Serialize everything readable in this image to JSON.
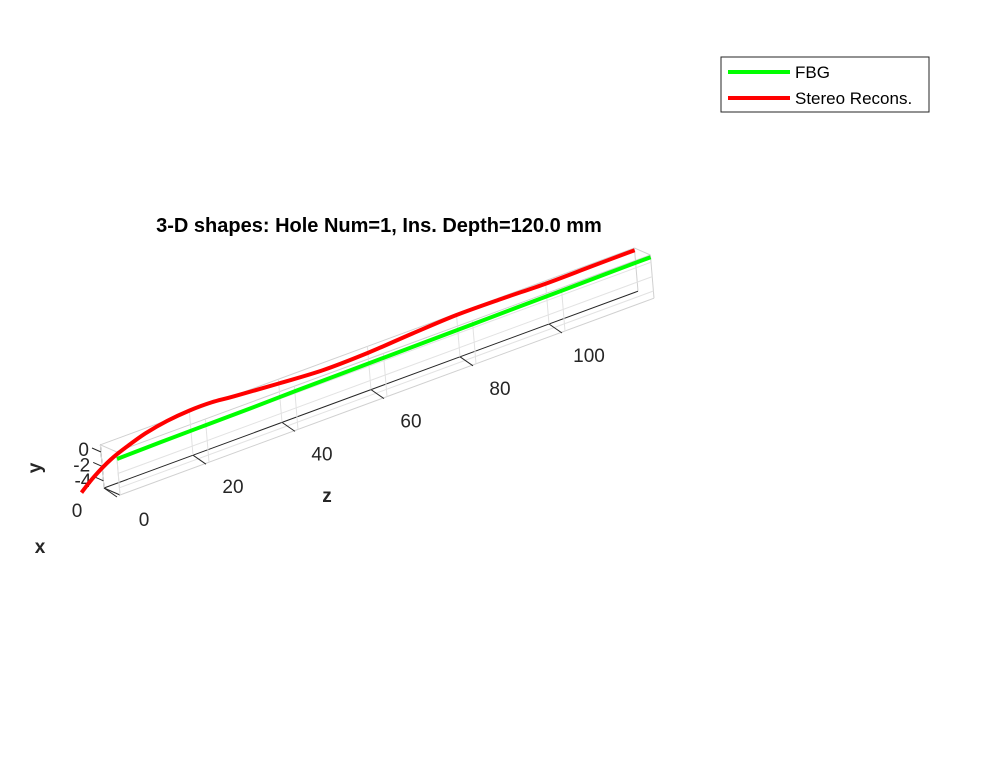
{
  "chart_data": {
    "type": "line",
    "title": "3-D shapes: Hole Num=1, Ins. Depth=120.0 mm",
    "axes": {
      "z": {
        "label": "z",
        "ticks": [
          "0",
          "20",
          "40",
          "60",
          "80",
          "100"
        ],
        "range": [
          0,
          120
        ]
      },
      "y": {
        "label": "y",
        "ticks": [
          "0",
          "-2",
          "-4"
        ],
        "range": [
          -5,
          1
        ]
      },
      "x": {
        "label": "x",
        "ticks": [
          "0"
        ]
      }
    },
    "grid": true,
    "legend_position": "top-right",
    "series": [
      {
        "name": "FBG",
        "color": "#00ff00",
        "z": [
          0,
          10,
          20,
          30,
          40,
          50,
          60,
          70,
          80,
          90,
          100,
          110,
          120
        ],
        "y": [
          0.0,
          0.1,
          0.15,
          0.2,
          0.3,
          0.35,
          0.4,
          0.45,
          0.5,
          0.55,
          0.6,
          0.65,
          0.7
        ]
      },
      {
        "name": "Stereo Recons.",
        "color": "#ff0000",
        "z": [
          -5,
          -2,
          2,
          6,
          10,
          15,
          20,
          25,
          30,
          40,
          50,
          60,
          70,
          80,
          90,
          100,
          110,
          120
        ],
        "y": [
          -4.5,
          -3.0,
          -1.5,
          -0.5,
          0.3,
          0.9,
          1.2,
          1.2,
          0.9,
          0.4,
          0.0,
          0.1,
          0.5,
          0.8,
          0.75,
          0.6,
          0.65,
          0.7
        ]
      }
    ]
  },
  "legend": {
    "entries": [
      "FBG",
      "Stereo Recons."
    ]
  }
}
